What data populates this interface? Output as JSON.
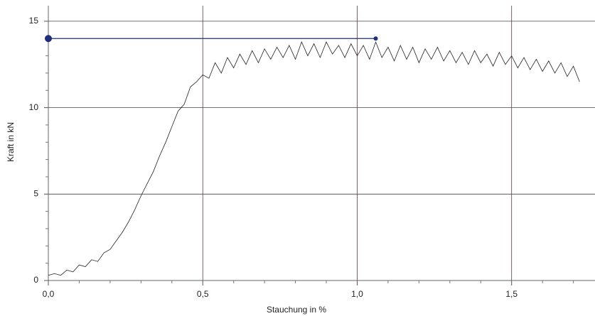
{
  "chart_data": {
    "type": "line",
    "xlabel": "Stauchung in %",
    "ylabel": "Kraft in kN",
    "xlim": [
      0,
      1.77
    ],
    "ylim": [
      0,
      15.9
    ],
    "xticks": [
      {
        "value": 0,
        "label": "0,0"
      },
      {
        "value": 0.5,
        "label": "0,5"
      },
      {
        "value": 1.0,
        "label": "1,0"
      },
      {
        "value": 1.5,
        "label": "1,5"
      }
    ],
    "yticks": [
      0,
      5,
      10,
      15
    ],
    "xminorticks": [
      0.1,
      0.2,
      0.3,
      0.4,
      0.6,
      0.7,
      0.8,
      0.9,
      1.1,
      1.2,
      1.3,
      1.4,
      1.6,
      1.7
    ],
    "yminorticks": [
      1,
      2,
      3,
      4,
      6,
      7,
      8,
      9,
      11,
      12,
      13,
      14
    ],
    "grid": true,
    "series": [
      {
        "color": "#222222",
        "x": [
          0,
          0.02,
          0.04,
          0.06,
          0.08,
          0.1,
          0.12,
          0.14,
          0.16,
          0.18,
          0.2,
          0.22,
          0.24,
          0.26,
          0.28,
          0.3,
          0.32,
          0.34,
          0.36,
          0.38,
          0.4,
          0.42,
          0.44,
          0.46,
          0.48,
          0.5,
          0.52,
          0.54,
          0.56,
          0.58,
          0.6,
          0.62,
          0.64,
          0.66,
          0.68,
          0.7,
          0.72,
          0.74,
          0.76,
          0.78,
          0.8,
          0.82,
          0.84,
          0.86,
          0.88,
          0.9,
          0.92,
          0.94,
          0.96,
          0.98,
          1.0,
          1.02,
          1.04,
          1.06,
          1.08,
          1.1,
          1.12,
          1.14,
          1.16,
          1.18,
          1.2,
          1.22,
          1.24,
          1.26,
          1.28,
          1.3,
          1.32,
          1.34,
          1.36,
          1.38,
          1.4,
          1.42,
          1.44,
          1.46,
          1.48,
          1.5,
          1.52,
          1.54,
          1.56,
          1.58,
          1.6,
          1.62,
          1.64,
          1.66,
          1.68,
          1.7,
          1.72
        ],
        "values": [
          0.3,
          0.4,
          0.3,
          0.6,
          0.5,
          0.9,
          0.8,
          1.2,
          1.1,
          1.6,
          1.8,
          2.3,
          2.8,
          3.4,
          4.1,
          4.9,
          5.6,
          6.3,
          7.2,
          8.0,
          8.9,
          9.8,
          10.2,
          11.2,
          11.5,
          11.9,
          11.7,
          12.6,
          12.0,
          12.9,
          12.3,
          13.1,
          12.5,
          13.3,
          12.6,
          13.4,
          12.8,
          13.5,
          12.9,
          13.6,
          12.8,
          13.8,
          13.0,
          13.7,
          12.9,
          13.8,
          13.1,
          13.6,
          12.9,
          13.7,
          13.0,
          13.6,
          12.8,
          13.8,
          12.9,
          13.5,
          12.7,
          13.6,
          12.8,
          13.5,
          12.6,
          13.4,
          12.8,
          13.5,
          12.7,
          13.3,
          12.6,
          13.2,
          12.5,
          13.3,
          12.6,
          13.1,
          12.4,
          13.2,
          12.5,
          13.0,
          12.3,
          12.9,
          12.2,
          12.8,
          12.1,
          12.7,
          12.0,
          12.6,
          11.8,
          12.4,
          11.5
        ]
      },
      {
        "color": "#1f2f7a",
        "x": [
          0,
          1.06
        ],
        "values": [
          14,
          14
        ]
      }
    ]
  }
}
